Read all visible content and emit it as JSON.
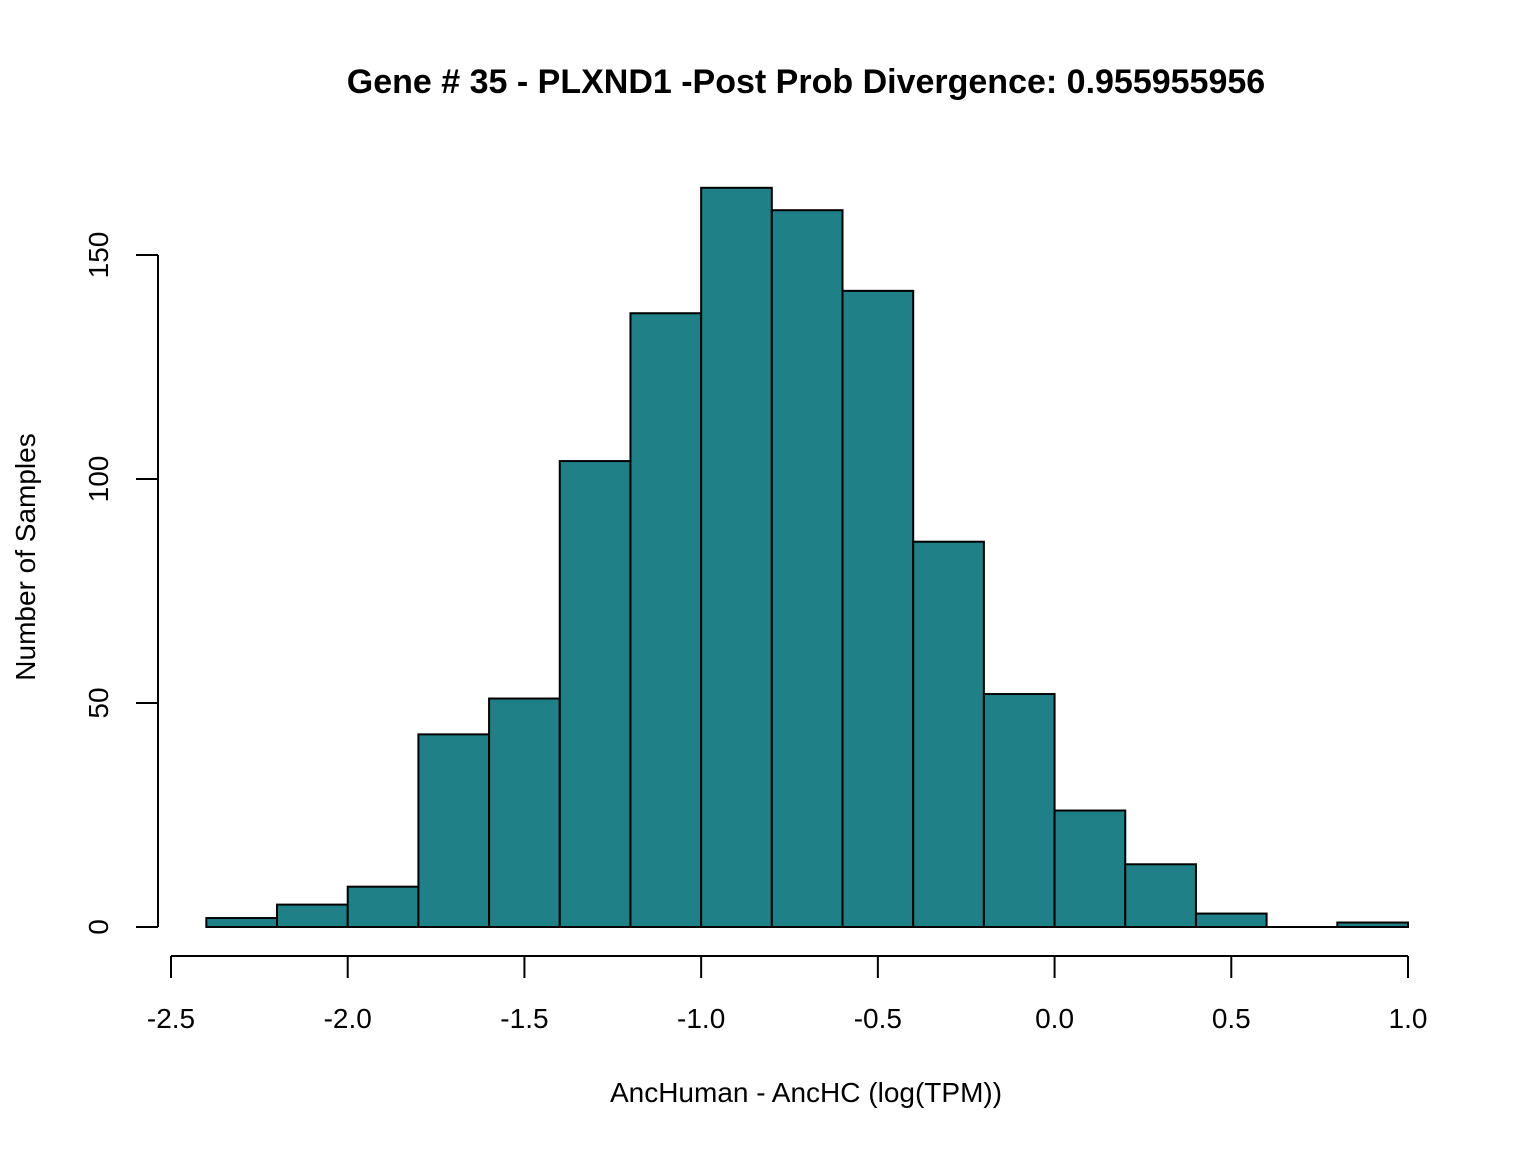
{
  "chart_data": {
    "type": "bar",
    "title": "Gene # 35 - PLXND1 -Post Prob Divergence: 0.955955956",
    "xlabel": "AncHuman - AncHC (log(TPM))",
    "ylabel": "Number of Samples",
    "bar_color": "#1f8088",
    "xlim": [
      -2.5,
      1.0
    ],
    "ylim": [
      0,
      165
    ],
    "x_ticks": [
      "-2.5",
      "-2.0",
      "-1.5",
      "-1.0",
      "-0.5",
      "0.0",
      "0.5",
      "1.0"
    ],
    "y_ticks": [
      "0",
      "50",
      "100",
      "150"
    ],
    "bins": [
      {
        "x0": -2.4,
        "x1": -2.2,
        "count": 2
      },
      {
        "x0": -2.2,
        "x1": -2.0,
        "count": 5
      },
      {
        "x0": -2.0,
        "x1": -1.8,
        "count": 9
      },
      {
        "x0": -1.8,
        "x1": -1.6,
        "count": 43
      },
      {
        "x0": -1.6,
        "x1": -1.4,
        "count": 51
      },
      {
        "x0": -1.4,
        "x1": -1.2,
        "count": 104
      },
      {
        "x0": -1.2,
        "x1": -1.0,
        "count": 137
      },
      {
        "x0": -1.0,
        "x1": -0.8,
        "count": 165
      },
      {
        "x0": -0.8,
        "x1": -0.6,
        "count": 160
      },
      {
        "x0": -0.6,
        "x1": -0.4,
        "count": 142
      },
      {
        "x0": -0.4,
        "x1": -0.2,
        "count": 86
      },
      {
        "x0": -0.2,
        "x1": 0.0,
        "count": 52
      },
      {
        "x0": 0.0,
        "x1": 0.2,
        "count": 26
      },
      {
        "x0": 0.2,
        "x1": 0.4,
        "count": 14
      },
      {
        "x0": 0.4,
        "x1": 0.6,
        "count": 3
      },
      {
        "x0": 0.6,
        "x1": 0.8,
        "count": 0
      },
      {
        "x0": 0.8,
        "x1": 1.0,
        "count": 1
      }
    ]
  }
}
